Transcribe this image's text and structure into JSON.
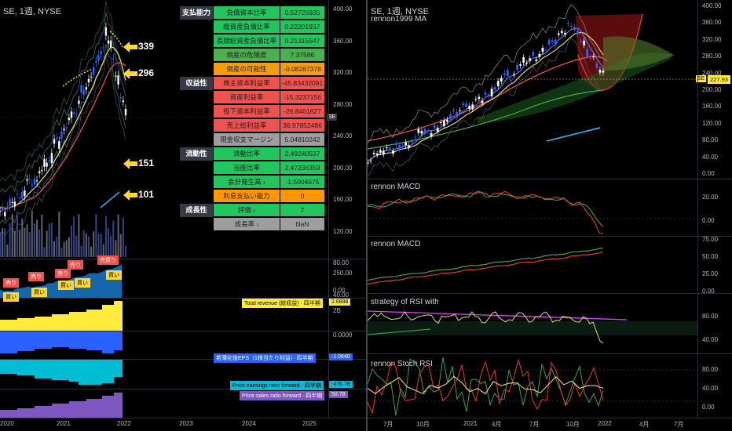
{
  "left_chart": {
    "title": "SE, 1週, NYSE",
    "arrows": [
      {
        "label": "339",
        "y": 60
      },
      {
        "label": "296",
        "y": 94
      },
      {
        "label": "151",
        "y": 209
      },
      {
        "label": "101",
        "y": 249
      }
    ],
    "price_axis": [
      "400.00",
      "360.00",
      "320.00",
      "280.00",
      "240.00",
      "200.00",
      "160.00",
      "120.00",
      "80.00",
      "40.00"
    ],
    "side_label": "SE",
    "signals": [
      {
        "text": "売り",
        "kind": "sell"
      },
      {
        "text": "売り",
        "kind": "sell"
      },
      {
        "text": "売り",
        "kind": "sell"
      },
      {
        "text": "売り",
        "kind": "sell"
      },
      {
        "text": "売買り",
        "kind": "sell"
      },
      {
        "text": "買い",
        "kind": "buy"
      },
      {
        "text": "買い",
        "kind": "buy"
      },
      {
        "text": "買い",
        "kind": "buy"
      },
      {
        "text": "買い",
        "kind": "buy"
      },
      {
        "text": "買い",
        "kind": "buy"
      }
    ],
    "pane_labels": {
      "revenue": "Total revenue (総収益) · 四半期",
      "revenue_val": "2.6898",
      "revenue_axis_b": "2B",
      "pane1_axis": "250.00",
      "pane1_axis2": "0.00",
      "eps": "希薄化後EPS（1株当たり利益）· 四半期",
      "eps_val": "-1.0640",
      "eps_axis": "0.0000",
      "pe": "Price earnings ratio forward · 四半期",
      "pe_val": "-476.78",
      "ps": "Price sales ratio forward · 四半期",
      "ps_val": "50.78"
    },
    "time_axis": [
      "2020",
      "2021",
      "2022",
      "2023",
      "2024",
      "2025"
    ]
  },
  "fin_table": {
    "rows": [
      {
        "cat": "支払能力",
        "name": "負債資本比率",
        "val": "0.52725935",
        "color": "#22c55e"
      },
      {
        "cat": "",
        "name": "総資産負債比率",
        "val": "0.22201937",
        "color": "#22c55e"
      },
      {
        "cat": "",
        "name": "長期総資産負債比率",
        "val": "0.21315547",
        "color": "#22c55e"
      },
      {
        "cat": "",
        "name": "倒産の危険度",
        "val": "7.37586",
        "color": "#4caf50"
      },
      {
        "cat": "",
        "name": "倒産の可能性",
        "val": "-0.08267378",
        "color": "#f59e0b"
      },
      {
        "cat": "収益性",
        "name": "株主資本利益率",
        "val": "-45.83432091",
        "color": "#ef5350"
      },
      {
        "cat": "",
        "name": "資産利益率",
        "val": "-15.3237156",
        "color": "#ef5350"
      },
      {
        "cat": "",
        "name": "投下資本利益率",
        "val": "-26.8401627",
        "color": "#ef5350"
      },
      {
        "cat": "",
        "name": "売上総利益率",
        "val": "36.97852486",
        "color": "#ef5350"
      },
      {
        "cat": "",
        "name": "現金収支マージン",
        "val": "5.04810242",
        "color": "#9e9e9e"
      },
      {
        "cat": "流動性",
        "name": "流動比率",
        "val": "2.49240537",
        "color": "#22c55e"
      },
      {
        "cat": "",
        "name": "当座比率",
        "val": "2.47236359",
        "color": "#22c55e"
      },
      {
        "cat": "",
        "name": "会計発生高 ›",
        "val": "-1.5004675",
        "color": "#22c55e"
      },
      {
        "cat": "",
        "name": "利息支払い能力",
        "val": "0",
        "color": "#ff9800"
      },
      {
        "cat": "成長性",
        "name": "評価 ›",
        "val": "7",
        "color": "#22c55e"
      },
      {
        "cat": "",
        "name": "成長率 ›",
        "val": "NaN",
        "color": "#9e9e9e"
      }
    ]
  },
  "right_chart": {
    "title": "SE, 1週, NYSE",
    "subtitle": "rennon1999 MA",
    "price_axis": [
      "400.00",
      "360.00",
      "320.00",
      "280.00",
      "240.00",
      "200.00",
      "160.00",
      "120.00",
      "80.00",
      "40.00",
      "0.00"
    ],
    "price_tag_label": "SE",
    "price_tag_value": "227.93",
    "macd1": {
      "title": "rennon MACD",
      "axis": [
        "20.00",
        "0.00"
      ]
    },
    "macd2": {
      "title": "rennon MACD",
      "axis": [
        "75.00",
        "50.00",
        "25.00",
        "0.00"
      ]
    },
    "rsi": {
      "title": "strategy of RSI with",
      "axis": [
        "80.00",
        "40.00"
      ]
    },
    "stoch": {
      "title": "rennon Stoch RSI",
      "axis": [
        "80.00",
        "40.00",
        "0.00"
      ]
    },
    "time_axis": [
      "7月",
      "10月",
      "2021",
      "4月",
      "7月",
      "10月",
      "2022",
      "4月",
      "7月"
    ]
  },
  "colors": {
    "bg": "#000000",
    "up": "#ffffff",
    "down": "#2962ff",
    "yellow_ma": "#f5e663",
    "red_ma": "#ef5350",
    "green_ma": "#4caf50",
    "cyan": "#29b6f6",
    "macd_red": "#e53935",
    "macd_green": "#43a047",
    "rsi_magenta": "#e040fb",
    "rev_yellow": "#ffeb3b",
    "eps_blue": "#2962ff",
    "pe_cyan": "#00bcd4",
    "ps_purple": "#7e57c2"
  }
}
